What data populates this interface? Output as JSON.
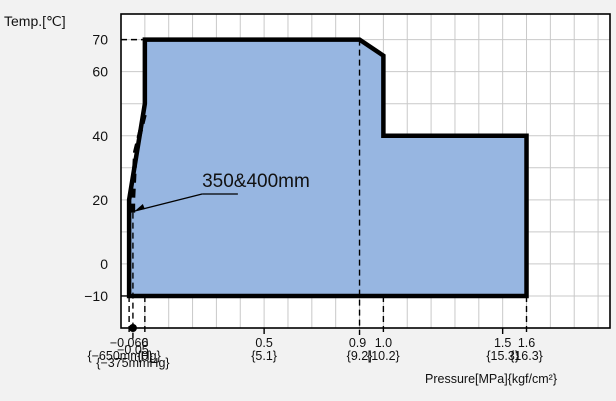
{
  "chart_data": {
    "type": "area",
    "ylabel": "Temp.[℃]",
    "xlabel": "Pressure[MPa]{kgf/cm²}",
    "annotation": "350&400mm",
    "x_range": [
      -0.1,
      1.95
    ],
    "y_range": [
      -20,
      78
    ],
    "y_ticks": [
      {
        "value": 70,
        "label": "70"
      },
      {
        "value": 60,
        "label": "60"
      },
      {
        "value": 40,
        "label": "40"
      },
      {
        "value": 20,
        "label": "20"
      },
      {
        "value": 0,
        "label": "0"
      },
      {
        "value": -10,
        "label": "-10"
      }
    ],
    "x_ticks": [
      {
        "value": -0.066,
        "label": "-0.066",
        "sublabel": "{-650mmHg}",
        "row": "top"
      },
      {
        "value": -0.05,
        "label": "-0.05",
        "sublabel": "{-375mmHg}",
        "row": "bottom"
      },
      {
        "value": 0,
        "label": "0",
        "sublabel": "{0}",
        "row": "top"
      },
      {
        "value": 0.5,
        "label": "0.5",
        "sublabel": "{5.1}",
        "row": "top"
      },
      {
        "value": 0.9,
        "label": "0.9",
        "sublabel": "{9.2}",
        "row": "top"
      },
      {
        "value": 1.0,
        "label": "1.0",
        "sublabel": "{10.2}",
        "row": "top"
      },
      {
        "value": 1.5,
        "label": "1.5",
        "sublabel": "{15.3}",
        "row": "top"
      },
      {
        "value": 1.6,
        "label": "1.6",
        "sublabel": "{16.3}",
        "row": "top"
      }
    ],
    "region": [
      [
        -0.066,
        -10
      ],
      [
        -0.066,
        20
      ],
      [
        0,
        50
      ],
      [
        0,
        70
      ],
      [
        0.9,
        70
      ],
      [
        1.0,
        65
      ],
      [
        1.0,
        40
      ],
      [
        1.6,
        40
      ],
      [
        1.6,
        -10
      ]
    ],
    "dashed_boundary_350_400mm": [
      [
        -0.05,
        16
      ],
      [
        -0.05,
        20
      ],
      [
        -0.04,
        35
      ],
      [
        0,
        47
      ]
    ],
    "grid": true,
    "fill_color": "#97b6e1",
    "boundary_color": "#000000"
  }
}
